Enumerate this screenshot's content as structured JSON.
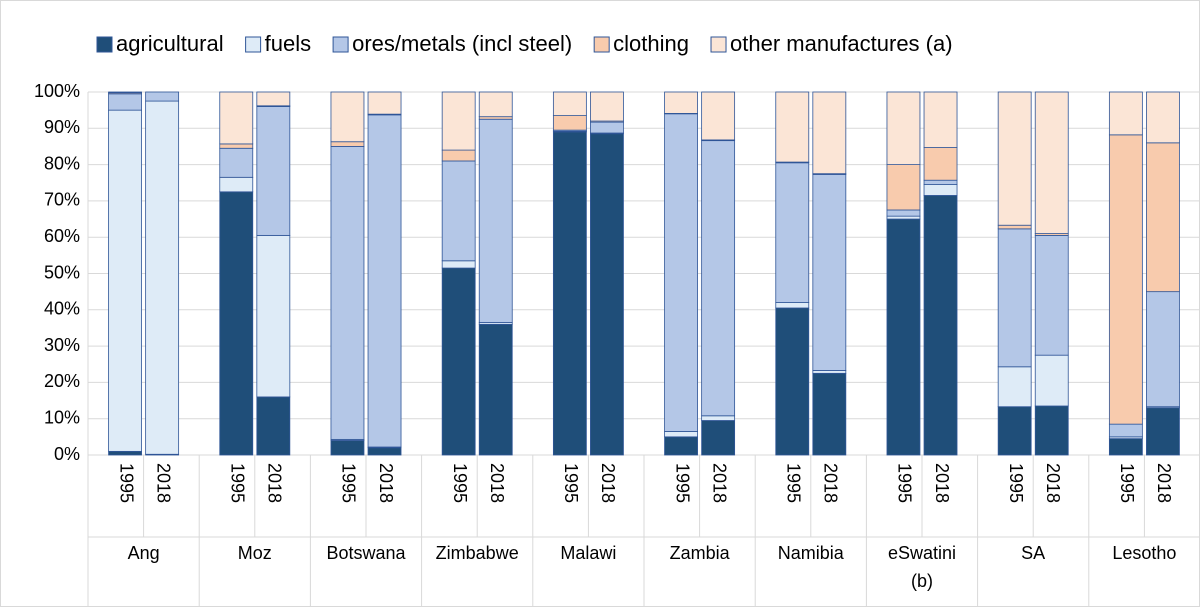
{
  "chart_data": {
    "type": "bar",
    "stacked": true,
    "legend": "top",
    "groups": [
      "Ang",
      "Moz",
      "Botswana",
      "Zimbabwe",
      "Malawi",
      "Zambia",
      "Namibia",
      "eSwatini (b)",
      "SA",
      "Lesotho"
    ],
    "categories": [
      "1995",
      "2018",
      "1995",
      "2018",
      "1995",
      "2018",
      "1995",
      "2018",
      "1995",
      "2018",
      "1995",
      "2018",
      "1995",
      "2018",
      "1995",
      "2018",
      "1995",
      "2018",
      "1995",
      "2018"
    ],
    "series": [
      {
        "name": "agricultural",
        "color": "#1f4e79",
        "values": [
          1,
          0.2,
          72.5,
          16,
          4,
          2,
          51.5,
          36,
          89,
          88.5,
          5,
          9.5,
          40.5,
          22.5,
          65,
          71.5,
          13.3,
          13.5,
          4.5,
          13
        ]
      },
      {
        "name": "fuels",
        "color": "#deebf7",
        "values": [
          94,
          97.3,
          4,
          44.5,
          0.3,
          0.2,
          2,
          0.5,
          0.2,
          0.2,
          1.5,
          1.3,
          1.5,
          0.8,
          0.8,
          3,
          11,
          14,
          0.5,
          0.3
        ]
      },
      {
        "name": "ores/metals (incl steel)",
        "color": "#b4c7e7",
        "values": [
          4.5,
          2.5,
          8,
          35.5,
          80.7,
          91.5,
          27.5,
          56,
          0.3,
          3,
          87.5,
          75.8,
          38.5,
          54,
          1.7,
          1.2,
          38,
          33,
          3.5,
          31.7
        ]
      },
      {
        "name": "clothing",
        "color": "#f8cbad",
        "values": [
          0.3,
          0,
          1.2,
          0.2,
          1.3,
          0.2,
          3,
          0.7,
          4,
          0.3,
          0.1,
          0.2,
          0.2,
          0.2,
          12.5,
          9,
          1,
          0.5,
          79.7,
          41
        ]
      },
      {
        "name": "other manufactures (a)",
        "color": "#fbe5d6",
        "values": [
          0.2,
          0,
          14.3,
          3.8,
          13.7,
          6.1,
          16,
          6.8,
          6.5,
          8,
          5.9,
          13.2,
          19.3,
          22.5,
          20,
          15.3,
          36.7,
          39,
          11.8,
          14
        ]
      }
    ],
    "ylim": [
      0,
      100
    ],
    "yticks": [
      {
        "value": 0,
        "label": "0%"
      },
      {
        "value": 10,
        "label": "10%"
      },
      {
        "value": 20,
        "label": "20%"
      },
      {
        "value": 30,
        "label": "30%"
      },
      {
        "value": 40,
        "label": "40%"
      },
      {
        "value": 50,
        "label": "50%"
      },
      {
        "value": 60,
        "label": "60%"
      },
      {
        "value": 70,
        "label": "70%"
      },
      {
        "value": 80,
        "label": "80%"
      },
      {
        "value": 90,
        "label": "90%"
      },
      {
        "value": 100,
        "label": "100%"
      }
    ],
    "grid": true
  }
}
